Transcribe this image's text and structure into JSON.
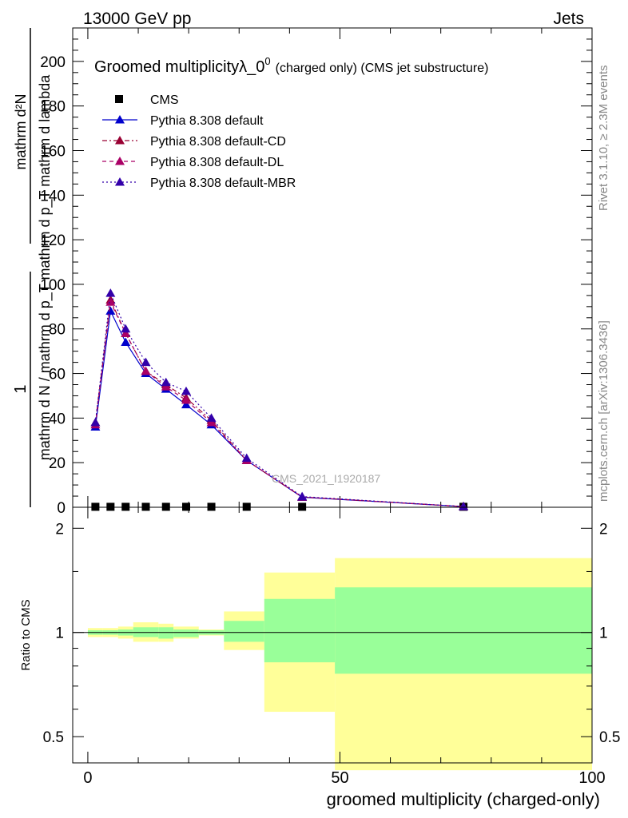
{
  "header": {
    "left": "13000 GeV pp",
    "right": "Jets"
  },
  "side_labels": {
    "rivet": "Rivet 3.1.10, ≥ 2.3M events",
    "mcplots": "mcplots.cern.ch [arXiv:1306.3436]"
  },
  "colors": {
    "cms": "#000000",
    "default": "#0000cc",
    "cd": "#990033",
    "dl": "#aa0066",
    "mbr": "#3300aa",
    "band_inner": "#99ff99",
    "band_outer": "#ffff99"
  },
  "chart_data": [
    {
      "type": "line",
      "title": "Groomed multiplicityλ_0",
      "title_sup": "0",
      "title_suffix": "(charged only) (CMS jet substructure)",
      "ylabel_main": "1",
      "ylabel_num": "mathrm d²N",
      "ylabel_den": "mathrm d N / mathrm d p_T mathrm d p_T mathrm d lambda",
      "analysis_tag": "CMS_2021_I1920187",
      "xlim": [
        -3,
        100
      ],
      "ylim": [
        0,
        215
      ],
      "y_ticks": [
        0,
        20,
        40,
        60,
        80,
        100,
        120,
        140,
        160,
        180,
        200
      ],
      "series": [
        {
          "name": "CMS",
          "style": "marker",
          "x": [
            1.5,
            4.5,
            7.5,
            11.5,
            15.5,
            19.5,
            24.5,
            31.5,
            42.5,
            74.5
          ],
          "values": [
            0.2,
            0.2,
            0.2,
            0.2,
            0.2,
            0.2,
            0.2,
            0.2,
            0.2,
            0.2
          ]
        },
        {
          "name": "Pythia 8.308 default",
          "style": "solid",
          "x": [
            1.5,
            4.5,
            7.5,
            11.5,
            15.5,
            19.5,
            24.5,
            31.5,
            42.5,
            74.5
          ],
          "values": [
            36,
            88,
            74,
            60,
            53,
            46,
            37,
            21,
            4.5,
            0.3
          ]
        },
        {
          "name": "Pythia 8.308 default-CD",
          "style": "dashdot",
          "x": [
            1.5,
            4.5,
            7.5,
            11.5,
            15.5,
            19.5,
            24.5,
            31.5,
            42.5,
            74.5
          ],
          "values": [
            38,
            93,
            78,
            61,
            55,
            49,
            39,
            21,
            4.6,
            0.3
          ]
        },
        {
          "name": "Pythia 8.308 default-DL",
          "style": "dashed",
          "x": [
            1.5,
            4.5,
            7.5,
            11.5,
            15.5,
            19.5,
            24.5,
            31.5,
            42.5,
            74.5
          ],
          "values": [
            37,
            92,
            78,
            61,
            54,
            48,
            38,
            21,
            4.6,
            0.3
          ]
        },
        {
          "name": "Pythia 8.308 default-MBR",
          "style": "dotted",
          "x": [
            1.5,
            4.5,
            7.5,
            11.5,
            15.5,
            19.5,
            24.5,
            31.5,
            42.5,
            74.5
          ],
          "values": [
            38,
            96,
            80,
            65,
            56,
            52,
            40,
            22,
            4.8,
            0.3
          ]
        }
      ]
    },
    {
      "type": "area",
      "ylabel": "Ratio to CMS",
      "xlabel": "groomed multiplicity (charged-only)",
      "xlim": [
        -3,
        100
      ],
      "ylim": [
        0.42,
        2.3
      ],
      "y_ticks": [
        0.5,
        1,
        2
      ],
      "x_ticks": [
        0,
        50,
        100
      ],
      "reference": 1,
      "bins": [
        {
          "lo": 0,
          "hi": 3,
          "inner": [
            0.985,
            1.015
          ],
          "outer": [
            0.97,
            1.03
          ]
        },
        {
          "lo": 3,
          "hi": 6,
          "inner": [
            0.985,
            1.015
          ],
          "outer": [
            0.97,
            1.03
          ]
        },
        {
          "lo": 6,
          "hi": 9,
          "inner": [
            0.98,
            1.02
          ],
          "outer": [
            0.96,
            1.04
          ]
        },
        {
          "lo": 9,
          "hi": 14,
          "inner": [
            0.97,
            1.035
          ],
          "outer": [
            0.94,
            1.07
          ]
        },
        {
          "lo": 14,
          "hi": 17,
          "inner": [
            0.96,
            1.035
          ],
          "outer": [
            0.94,
            1.06
          ]
        },
        {
          "lo": 17,
          "hi": 22,
          "inner": [
            0.97,
            1.02
          ],
          "outer": [
            0.96,
            1.04
          ]
        },
        {
          "lo": 22,
          "hi": 27,
          "inner": [
            0.985,
            1.015
          ],
          "outer": [
            0.98,
            1.02
          ]
        },
        {
          "lo": 27,
          "hi": 35,
          "inner": [
            0.94,
            1.08
          ],
          "outer": [
            0.89,
            1.15
          ]
        },
        {
          "lo": 35,
          "hi": 49,
          "inner": [
            0.82,
            1.25
          ],
          "outer": [
            0.59,
            1.49
          ]
        },
        {
          "lo": 49,
          "hi": 100,
          "inner": [
            0.76,
            1.35
          ],
          "outer": [
            0.4,
            1.64
          ]
        }
      ]
    }
  ]
}
